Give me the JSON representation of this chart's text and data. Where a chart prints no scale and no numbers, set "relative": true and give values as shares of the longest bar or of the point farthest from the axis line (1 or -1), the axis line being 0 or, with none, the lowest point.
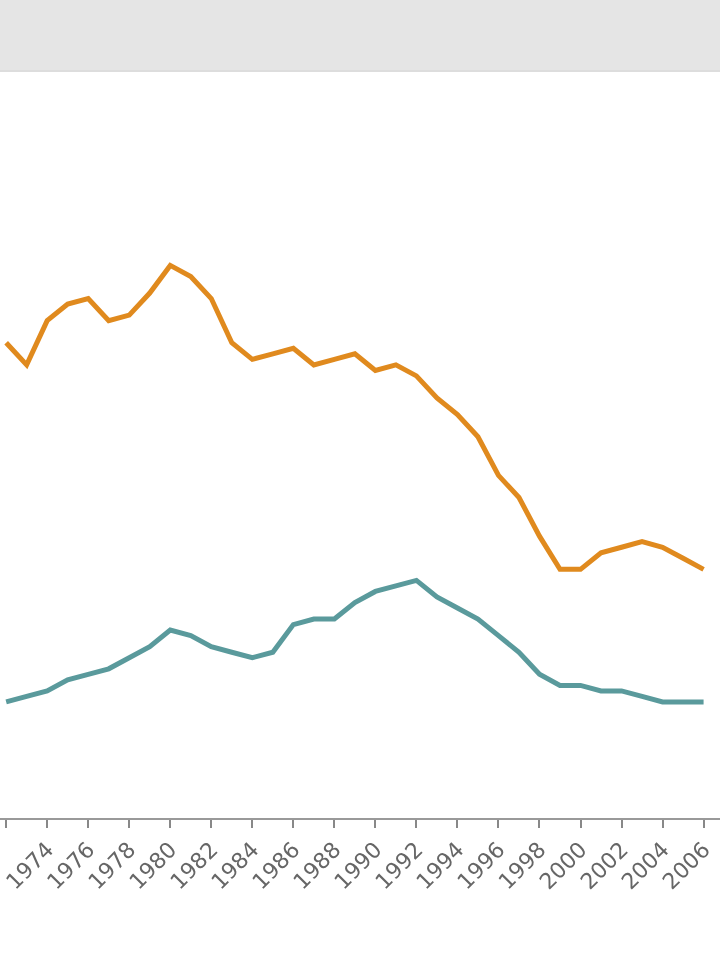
{
  "chart_data": {
    "type": "line",
    "relative": true,
    "x": [
      1972,
      1973,
      1974,
      1975,
      1976,
      1977,
      1978,
      1979,
      1980,
      1981,
      1982,
      1983,
      1984,
      1985,
      1986,
      1987,
      1988,
      1989,
      1990,
      1991,
      1992,
      1993,
      1994,
      1995,
      1996,
      1997,
      1998,
      1999,
      2000,
      2001,
      2002,
      2003,
      2004,
      2005,
      2006
    ],
    "series": [
      {
        "color": "#e08a1e",
        "values": [
          0.86,
          0.82,
          0.9,
          0.93,
          0.94,
          0.9,
          0.91,
          0.95,
          1,
          0.98,
          0.94,
          0.86,
          0.83,
          0.84,
          0.85,
          0.82,
          0.83,
          0.84,
          0.81,
          0.82,
          0.8,
          0.76,
          0.73,
          0.69,
          0.62,
          0.58,
          0.51,
          0.45,
          0.45,
          0.48,
          0.49,
          0.5,
          0.49,
          0.47,
          0.45
        ]
      },
      {
        "color": "#5a9a9c",
        "values": [
          0.21,
          0.22,
          0.23,
          0.25,
          0.26,
          0.27,
          0.29,
          0.31,
          0.34,
          0.33,
          0.31,
          0.3,
          0.29,
          0.3,
          0.35,
          0.36,
          0.36,
          0.39,
          0.41,
          0.42,
          0.43,
          0.4,
          0.38,
          0.36,
          0.33,
          0.3,
          0.26,
          0.24,
          0.24,
          0.23,
          0.23,
          0.22,
          0.21,
          0.21,
          0.21
        ]
      }
    ],
    "xlim": [
      1971.7,
      2006.8
    ],
    "xticks": [
      {
        "value": 1972,
        "label": null
      },
      1974,
      1976,
      1978,
      1980,
      1982,
      1984,
      1986,
      1988,
      1990,
      1992,
      1994,
      1996,
      1998,
      2000,
      2002,
      2004,
      2006
    ]
  }
}
